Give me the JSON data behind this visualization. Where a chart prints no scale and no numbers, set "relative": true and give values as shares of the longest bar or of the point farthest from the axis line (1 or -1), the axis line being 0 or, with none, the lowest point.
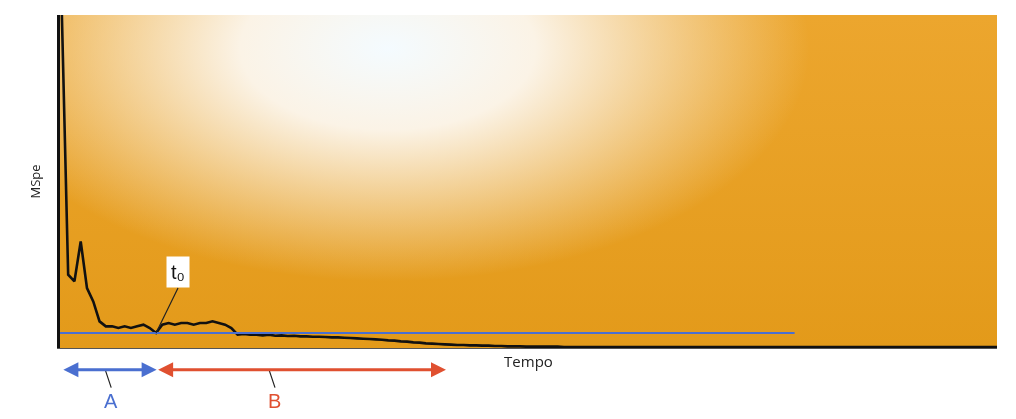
{
  "chart_data": {
    "type": "line",
    "relative": true,
    "xlabel": "Tempo",
    "ylabel": "MSpe",
    "marker": "none",
    "line_style": "solid",
    "tick_labels": false,
    "categories": [
      null,
      null,
      null,
      null,
      null,
      null,
      null,
      null,
      null,
      null,
      null,
      null,
      null,
      null,
      null,
      null,
      null,
      null,
      null,
      null,
      null,
      null,
      null,
      null,
      null,
      null,
      null,
      null,
      null,
      null,
      null,
      null,
      null,
      null,
      null,
      null,
      null,
      null,
      null,
      null,
      null,
      null,
      null,
      null,
      null,
      null,
      null,
      null,
      null,
      null,
      null,
      null,
      null,
      null,
      null,
      null,
      null,
      null,
      null,
      null,
      null,
      null,
      null,
      null,
      null,
      null,
      null,
      null,
      null,
      null,
      null,
      null,
      null,
      null,
      null,
      null,
      null,
      null,
      null,
      null,
      null,
      null,
      null,
      null,
      null,
      null,
      null,
      null,
      null,
      null,
      null,
      null,
      null,
      null,
      null,
      null,
      null,
      null,
      null,
      null,
      null,
      null,
      null,
      null,
      null,
      null,
      null,
      null,
      null,
      null,
      null,
      null,
      null,
      null,
      null,
      null,
      null,
      null,
      null,
      null,
      null,
      null,
      null,
      null,
      null,
      null,
      null,
      null,
      null,
      null,
      null,
      null,
      null,
      null,
      null,
      null,
      null,
      null,
      null,
      null,
      null,
      null,
      null,
      null,
      null,
      null,
      null,
      null,
      null,
      null
    ],
    "series": [
      {
        "color": "#111111",
        "values": [
          1.0,
          0.22,
          0.2,
          0.32,
          0.18,
          0.14,
          0.08,
          0.065,
          0.065,
          0.06,
          0.065,
          0.06,
          0.065,
          0.07,
          0.06,
          0.045,
          0.07,
          0.075,
          0.07,
          0.075,
          0.075,
          0.07,
          0.075,
          0.075,
          0.08,
          0.075,
          0.07,
          0.06,
          0.04,
          0.042,
          0.04,
          0.04,
          0.038,
          0.04,
          0.037,
          0.038,
          0.036,
          0.037,
          0.035,
          0.035,
          0.034,
          0.034,
          0.033,
          0.032,
          0.032,
          0.031,
          0.03,
          0.029,
          0.028,
          0.027,
          0.026,
          0.025,
          0.023,
          0.022,
          0.02,
          0.019,
          0.017,
          0.016,
          0.014,
          0.013,
          0.012,
          0.011,
          0.01,
          0.009,
          0.009,
          0.008,
          0.008,
          0.007,
          0.007,
          0.006,
          0.006,
          0.005,
          0.005,
          0.005,
          0.004,
          0.004,
          0.004,
          0.004,
          0.004,
          0.004,
          0.003,
          0.003,
          0.003,
          0.003,
          0.003,
          0.003,
          0.003,
          0.003,
          0.003,
          0.003,
          0.003,
          0.003,
          0.003,
          0.003,
          0.003,
          0.003,
          0.003,
          0.003,
          0.003,
          0.003,
          0.003,
          0.003,
          0.003,
          0.003,
          0.003,
          0.003,
          0.003,
          0.003,
          0.003,
          0.003,
          0.003,
          0.003,
          0.003,
          0.003,
          0.003,
          0.003,
          0.003,
          0.003,
          0.003,
          0.003,
          0.003,
          0.003,
          0.003,
          0.003,
          0.003,
          0.003,
          0.003,
          0.003,
          0.003,
          0.003,
          0.003,
          0.003,
          0.003,
          0.003,
          0.003,
          0.003,
          0.003,
          0.003,
          0.003,
          0.003,
          0.003,
          0.003,
          0.003,
          0.003,
          0.003,
          0.003,
          0.003,
          0.003,
          0.003,
          0.003
        ]
      }
    ],
    "ref_lines": [
      {
        "axis": "y",
        "value": 0.045,
        "color": "#4a6fd0"
      }
    ],
    "annotations": [
      "t₀",
      "A",
      "B"
    ]
  }
}
